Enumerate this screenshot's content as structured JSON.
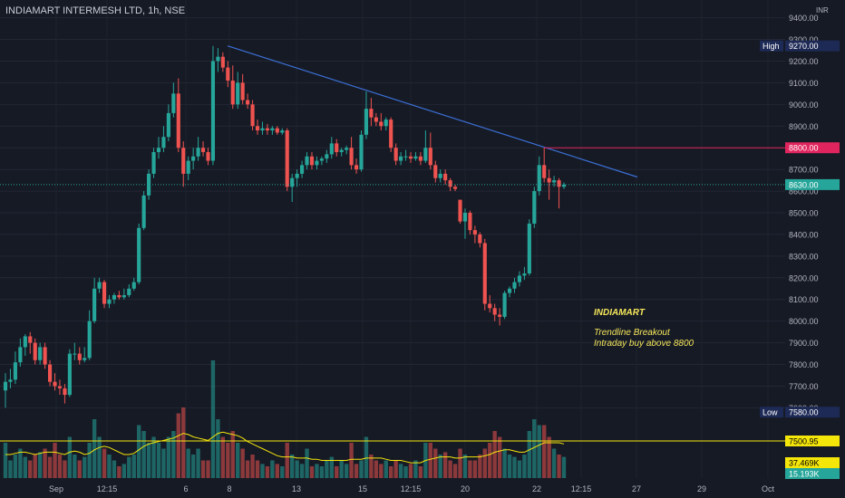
{
  "header": {
    "title": "INDIAMART INTERMESH LTD, 1h, NSE"
  },
  "price_axis": {
    "unit_label": "INR",
    "ticks": [
      "9400.00",
      "9300.00",
      "9200.00",
      "9100.00",
      "9000.00",
      "8900.00",
      "8800.00",
      "8700.00",
      "8600.00",
      "8500.00",
      "8400.00",
      "8300.00",
      "8200.00",
      "8100.00",
      "8000.00",
      "7900.00",
      "7800.00",
      "7700.00",
      "7600.00"
    ],
    "markers": [
      {
        "label": "High",
        "value": "9270.00",
        "color": "#1e2a56"
      },
      {
        "label": "",
        "value": "8800.00",
        "color": "#e0245e"
      },
      {
        "label": "",
        "value": "8630.00",
        "color": "#26a69a"
      },
      {
        "label": "Low",
        "value": "7580.00",
        "color": "#1e2a56"
      },
      {
        "label": "",
        "value": "7500.95",
        "color": "#f5e60a"
      },
      {
        "label": "",
        "value": "37.469K",
        "color": "#f5e60a"
      },
      {
        "label": "",
        "value": "15.193K",
        "color": "#26a69a"
      }
    ]
  },
  "time_axis": {
    "ticks": [
      "Sep",
      "12:15",
      "6",
      "8",
      "13",
      "15",
      "12:15",
      "20",
      "22",
      "12:15",
      "27",
      "29",
      "Oct"
    ]
  },
  "annotation": {
    "symbol": "INDIAMART",
    "line1": "Trendline Breakout",
    "line2": "Intraday buy above 8800"
  },
  "chart_data": {
    "type": "candlestick",
    "title": "INDIAMART INTERMESH LTD, 1h, NSE",
    "ylim": [
      7560,
      9440
    ],
    "colors": {
      "up": "#26a69a",
      "down": "#ef5350",
      "trendline": "#3b6fd4",
      "level": "#e0245e",
      "volume_ma": "#f5e60a",
      "background": "#161a25"
    },
    "level_8800": 8800,
    "last_price": 8630,
    "high": 9270,
    "low": 7580,
    "trendline": {
      "from": {
        "x": "8 Sep",
        "y": 9270
      },
      "to": {
        "x": "24 Sep",
        "y": 8665
      }
    },
    "candles": [
      {
        "o": 7680,
        "h": 7760,
        "l": 7600,
        "c": 7720
      },
      {
        "o": 7720,
        "h": 7780,
        "l": 7690,
        "c": 7730
      },
      {
        "o": 7730,
        "h": 7860,
        "l": 7710,
        "c": 7810
      },
      {
        "o": 7810,
        "h": 7920,
        "l": 7790,
        "c": 7880
      },
      {
        "o": 7880,
        "h": 7940,
        "l": 7840,
        "c": 7930
      },
      {
        "o": 7930,
        "h": 7950,
        "l": 7850,
        "c": 7900
      },
      {
        "o": 7900,
        "h": 7920,
        "l": 7800,
        "c": 7820
      },
      {
        "o": 7820,
        "h": 7900,
        "l": 7800,
        "c": 7880
      },
      {
        "o": 7880,
        "h": 7900,
        "l": 7780,
        "c": 7800
      },
      {
        "o": 7800,
        "h": 7820,
        "l": 7700,
        "c": 7720
      },
      {
        "o": 7720,
        "h": 7760,
        "l": 7680,
        "c": 7700
      },
      {
        "o": 7700,
        "h": 7730,
        "l": 7660,
        "c": 7690
      },
      {
        "o": 7690,
        "h": 7710,
        "l": 7620,
        "c": 7660
      },
      {
        "o": 7660,
        "h": 7870,
        "l": 7650,
        "c": 7850
      },
      {
        "o": 7850,
        "h": 7900,
        "l": 7820,
        "c": 7850
      },
      {
        "o": 7850,
        "h": 7880,
        "l": 7800,
        "c": 7820
      },
      {
        "o": 7820,
        "h": 7880,
        "l": 7810,
        "c": 7830
      },
      {
        "o": 7830,
        "h": 8050,
        "l": 7820,
        "c": 8000
      },
      {
        "o": 8000,
        "h": 8200,
        "l": 7990,
        "c": 8150
      },
      {
        "o": 8150,
        "h": 8200,
        "l": 8130,
        "c": 8180
      },
      {
        "o": 8180,
        "h": 8190,
        "l": 8060,
        "c": 8080
      },
      {
        "o": 8080,
        "h": 8120,
        "l": 8060,
        "c": 8100
      },
      {
        "o": 8100,
        "h": 8130,
        "l": 8080,
        "c": 8120
      },
      {
        "o": 8120,
        "h": 8140,
        "l": 8100,
        "c": 8110
      },
      {
        "o": 8110,
        "h": 8150,
        "l": 8100,
        "c": 8120
      },
      {
        "o": 8120,
        "h": 8170,
        "l": 8110,
        "c": 8150
      },
      {
        "o": 8150,
        "h": 8200,
        "l": 8140,
        "c": 8180
      },
      {
        "o": 8180,
        "h": 8450,
        "l": 8170,
        "c": 8430
      },
      {
        "o": 8430,
        "h": 8600,
        "l": 8420,
        "c": 8580
      },
      {
        "o": 8580,
        "h": 8700,
        "l": 8560,
        "c": 8680
      },
      {
        "o": 8680,
        "h": 8800,
        "l": 8660,
        "c": 8780
      },
      {
        "o": 8780,
        "h": 8850,
        "l": 8750,
        "c": 8800
      },
      {
        "o": 8800,
        "h": 8900,
        "l": 8780,
        "c": 8850
      },
      {
        "o": 8850,
        "h": 9000,
        "l": 8830,
        "c": 8960
      },
      {
        "o": 8960,
        "h": 9100,
        "l": 8940,
        "c": 9050
      },
      {
        "o": 9050,
        "h": 9120,
        "l": 8780,
        "c": 8800
      },
      {
        "o": 8800,
        "h": 8830,
        "l": 8620,
        "c": 8680
      },
      {
        "o": 8680,
        "h": 8760,
        "l": 8650,
        "c": 8740
      },
      {
        "o": 8740,
        "h": 8800,
        "l": 8700,
        "c": 8760
      },
      {
        "o": 8760,
        "h": 8850,
        "l": 8740,
        "c": 8800
      },
      {
        "o": 8800,
        "h": 8830,
        "l": 8760,
        "c": 8780
      },
      {
        "o": 8780,
        "h": 8800,
        "l": 8720,
        "c": 8740
      },
      {
        "o": 8740,
        "h": 9270,
        "l": 8720,
        "c": 9200
      },
      {
        "o": 9200,
        "h": 9260,
        "l": 9150,
        "c": 9220
      },
      {
        "o": 9220,
        "h": 9240,
        "l": 9150,
        "c": 9170
      },
      {
        "o": 9170,
        "h": 9200,
        "l": 9080,
        "c": 9110
      },
      {
        "o": 9110,
        "h": 9180,
        "l": 8980,
        "c": 9000
      },
      {
        "o": 9000,
        "h": 9150,
        "l": 8980,
        "c": 9100
      },
      {
        "o": 9100,
        "h": 9140,
        "l": 9000,
        "c": 9020
      },
      {
        "o": 9020,
        "h": 9050,
        "l": 8980,
        "c": 9000
      },
      {
        "o": 9000,
        "h": 9020,
        "l": 8880,
        "c": 8900
      },
      {
        "o": 8900,
        "h": 8930,
        "l": 8860,
        "c": 8880
      },
      {
        "o": 8880,
        "h": 8920,
        "l": 8860,
        "c": 8890
      },
      {
        "o": 8890,
        "h": 8910,
        "l": 8860,
        "c": 8880
      },
      {
        "o": 8880,
        "h": 8900,
        "l": 8860,
        "c": 8890
      },
      {
        "o": 8890,
        "h": 8900,
        "l": 8860,
        "c": 8870
      },
      {
        "o": 8870,
        "h": 8890,
        "l": 8860,
        "c": 8880
      },
      {
        "o": 8880,
        "h": 8890,
        "l": 8600,
        "c": 8620
      },
      {
        "o": 8620,
        "h": 8680,
        "l": 8550,
        "c": 8660
      },
      {
        "o": 8660,
        "h": 8700,
        "l": 8620,
        "c": 8680
      },
      {
        "o": 8680,
        "h": 8740,
        "l": 8660,
        "c": 8720
      },
      {
        "o": 8720,
        "h": 8780,
        "l": 8700,
        "c": 8760
      },
      {
        "o": 8760,
        "h": 8780,
        "l": 8700,
        "c": 8720
      },
      {
        "o": 8720,
        "h": 8760,
        "l": 8700,
        "c": 8740
      },
      {
        "o": 8740,
        "h": 8760,
        "l": 8720,
        "c": 8750
      },
      {
        "o": 8750,
        "h": 8790,
        "l": 8730,
        "c": 8770
      },
      {
        "o": 8770,
        "h": 8850,
        "l": 8750,
        "c": 8820
      },
      {
        "o": 8820,
        "h": 8840,
        "l": 8760,
        "c": 8780
      },
      {
        "o": 8780,
        "h": 8800,
        "l": 8760,
        "c": 8790
      },
      {
        "o": 8790,
        "h": 8810,
        "l": 8770,
        "c": 8800
      },
      {
        "o": 8800,
        "h": 8850,
        "l": 8700,
        "c": 8720
      },
      {
        "o": 8720,
        "h": 8750,
        "l": 8680,
        "c": 8700
      },
      {
        "o": 8700,
        "h": 8880,
        "l": 8690,
        "c": 8860
      },
      {
        "o": 8860,
        "h": 9060,
        "l": 8840,
        "c": 8980
      },
      {
        "o": 8980,
        "h": 9030,
        "l": 8900,
        "c": 8940
      },
      {
        "o": 8940,
        "h": 8960,
        "l": 8900,
        "c": 8920
      },
      {
        "o": 8920,
        "h": 8960,
        "l": 8880,
        "c": 8900
      },
      {
        "o": 8900,
        "h": 8940,
        "l": 8880,
        "c": 8930
      },
      {
        "o": 8930,
        "h": 8940,
        "l": 8780,
        "c": 8800
      },
      {
        "o": 8800,
        "h": 8820,
        "l": 8720,
        "c": 8740
      },
      {
        "o": 8740,
        "h": 8780,
        "l": 8720,
        "c": 8760
      },
      {
        "o": 8760,
        "h": 8790,
        "l": 8740,
        "c": 8760
      },
      {
        "o": 8760,
        "h": 8780,
        "l": 8730,
        "c": 8750
      },
      {
        "o": 8750,
        "h": 8780,
        "l": 8740,
        "c": 8760
      },
      {
        "o": 8760,
        "h": 8780,
        "l": 8720,
        "c": 8740
      },
      {
        "o": 8740,
        "h": 8880,
        "l": 8730,
        "c": 8800
      },
      {
        "o": 8800,
        "h": 8870,
        "l": 8700,
        "c": 8720
      },
      {
        "o": 8720,
        "h": 8740,
        "l": 8640,
        "c": 8660
      },
      {
        "o": 8660,
        "h": 8700,
        "l": 8640,
        "c": 8680
      },
      {
        "o": 8680,
        "h": 8700,
        "l": 8630,
        "c": 8650
      },
      {
        "o": 8650,
        "h": 8660,
        "l": 8600,
        "c": 8620
      },
      {
        "o": 8620,
        "h": 8630,
        "l": 8600,
        "c": 8610
      },
      {
        "o": 8560,
        "h": 8560,
        "l": 8450,
        "c": 8460
      },
      {
        "o": 8460,
        "h": 8520,
        "l": 8380,
        "c": 8500
      },
      {
        "o": 8500,
        "h": 8510,
        "l": 8400,
        "c": 8420
      },
      {
        "o": 8420,
        "h": 8440,
        "l": 8360,
        "c": 8400
      },
      {
        "o": 8400,
        "h": 8410,
        "l": 8340,
        "c": 8360
      },
      {
        "o": 8360,
        "h": 8380,
        "l": 8050,
        "c": 8080
      },
      {
        "o": 8080,
        "h": 8120,
        "l": 8040,
        "c": 8060
      },
      {
        "o": 8060,
        "h": 8080,
        "l": 8000,
        "c": 8030
      },
      {
        "o": 8030,
        "h": 8060,
        "l": 7980,
        "c": 8020
      },
      {
        "o": 8020,
        "h": 8140,
        "l": 8010,
        "c": 8130
      },
      {
        "o": 8130,
        "h": 8160,
        "l": 8110,
        "c": 8150
      },
      {
        "o": 8150,
        "h": 8200,
        "l": 8130,
        "c": 8180
      },
      {
        "o": 8180,
        "h": 8230,
        "l": 8160,
        "c": 8210
      },
      {
        "o": 8210,
        "h": 8250,
        "l": 8190,
        "c": 8220
      },
      {
        "o": 8220,
        "h": 8470,
        "l": 8210,
        "c": 8450
      },
      {
        "o": 8450,
        "h": 8620,
        "l": 8430,
        "c": 8600
      },
      {
        "o": 8600,
        "h": 8760,
        "l": 8580,
        "c": 8720
      },
      {
        "o": 8720,
        "h": 8800,
        "l": 8640,
        "c": 8660
      },
      {
        "o": 8660,
        "h": 8700,
        "l": 8560,
        "c": 8640
      },
      {
        "o": 8640,
        "h": 8670,
        "l": 8620,
        "c": 8650
      },
      {
        "o": 8650,
        "h": 8660,
        "l": 8520,
        "c": 8620
      },
      {
        "o": 8620,
        "h": 8640,
        "l": 8610,
        "c": 8630
      }
    ],
    "volume": [
      0.3,
      0.15,
      0.2,
      0.25,
      0.18,
      0.15,
      0.2,
      0.22,
      0.25,
      0.18,
      0.3,
      0.2,
      0.15,
      0.35,
      0.2,
      0.15,
      0.18,
      0.3,
      0.5,
      0.35,
      0.25,
      0.2,
      0.15,
      0.1,
      0.12,
      0.18,
      0.2,
      0.45,
      0.4,
      0.3,
      0.35,
      0.3,
      0.25,
      0.35,
      0.4,
      0.55,
      0.6,
      0.25,
      0.2,
      0.25,
      0.15,
      0.15,
      1.0,
      0.5,
      0.35,
      0.3,
      0.4,
      0.3,
      0.25,
      0.15,
      0.2,
      0.15,
      0.12,
      0.1,
      0.15,
      0.12,
      0.1,
      0.3,
      0.2,
      0.15,
      0.12,
      0.25,
      0.1,
      0.12,
      0.1,
      0.15,
      0.18,
      0.1,
      0.15,
      0.12,
      0.3,
      0.12,
      0.15,
      0.35,
      0.2,
      0.15,
      0.12,
      0.15,
      0.1,
      0.15,
      0.12,
      0.1,
      0.12,
      0.15,
      0.1,
      0.3,
      0.3,
      0.25,
      0.2,
      0.22,
      0.15,
      0.12,
      0.25,
      0.2,
      0.15,
      0.15,
      0.2,
      0.25,
      0.3,
      0.4,
      0.35,
      0.25,
      0.2,
      0.18,
      0.15,
      0.2,
      0.4,
      0.5,
      0.45,
      0.45,
      0.35,
      0.25,
      0.2,
      0.18
    ],
    "volume_ma": [
      0.2,
      0.2,
      0.21,
      0.22,
      0.22,
      0.21,
      0.2,
      0.21,
      0.22,
      0.22,
      0.22,
      0.21,
      0.2,
      0.22,
      0.23,
      0.22,
      0.2,
      0.21,
      0.24,
      0.26,
      0.27,
      0.26,
      0.24,
      0.22,
      0.2,
      0.2,
      0.21,
      0.24,
      0.27,
      0.29,
      0.3,
      0.31,
      0.32,
      0.33,
      0.34,
      0.36,
      0.38,
      0.37,
      0.35,
      0.34,
      0.33,
      0.32,
      0.35,
      0.38,
      0.39,
      0.38,
      0.37,
      0.36,
      0.34,
      0.31,
      0.29,
      0.27,
      0.25,
      0.23,
      0.21,
      0.19,
      0.18,
      0.18,
      0.18,
      0.17,
      0.17,
      0.17,
      0.16,
      0.16,
      0.15,
      0.15,
      0.15,
      0.15,
      0.15,
      0.15,
      0.16,
      0.16,
      0.16,
      0.17,
      0.17,
      0.17,
      0.17,
      0.16,
      0.15,
      0.15,
      0.15,
      0.14,
      0.13,
      0.13,
      0.13,
      0.15,
      0.16,
      0.17,
      0.18,
      0.18,
      0.18,
      0.17,
      0.17,
      0.18,
      0.18,
      0.18,
      0.18,
      0.19,
      0.2,
      0.22,
      0.23,
      0.24,
      0.24,
      0.23,
      0.22,
      0.22,
      0.24,
      0.26,
      0.28,
      0.3,
      0.3,
      0.3,
      0.3,
      0.29
    ]
  }
}
